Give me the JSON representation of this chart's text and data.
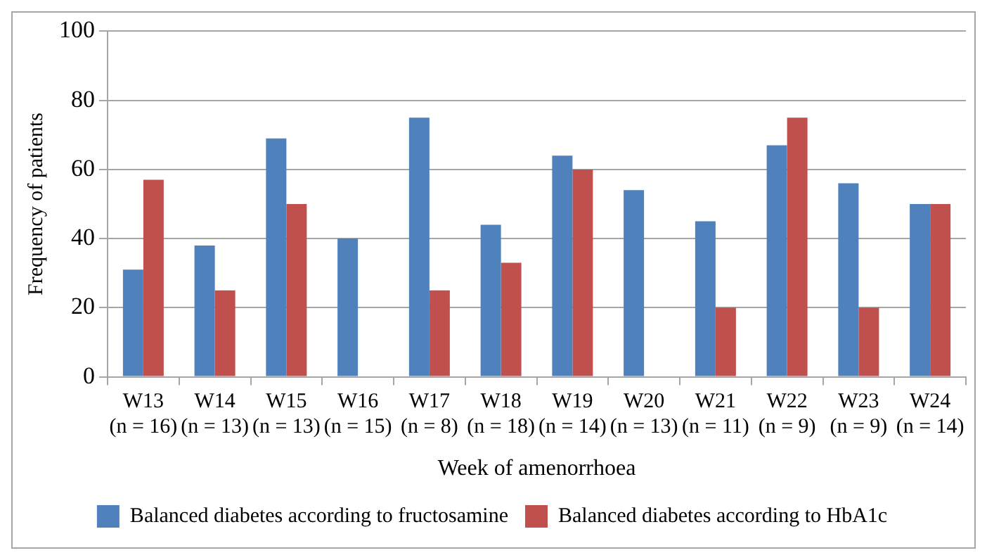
{
  "chart_data": {
    "type": "bar",
    "xlabel": "Week of amenorrhoea",
    "ylabel": "Frequency of patients",
    "categories": [
      "W13\n(n = 16)",
      "W14\n(n = 13)",
      "W15\n(n = 13)",
      "W16\n(n = 15)",
      "W17\n(n = 8)",
      "W18\n(n = 18)",
      "W19\n(n = 14)",
      "W20\n(n = 13)",
      "W21\n(n = 11)",
      "W22\n(n = 9)",
      "W23\n(n = 9)",
      "W24\n(n = 14)"
    ],
    "series": [
      {
        "name": "Balanced diabetes according to fructosamine",
        "color": "#4f81bd",
        "values": [
          31,
          38,
          69,
          40,
          75,
          44,
          64,
          54,
          45,
          67,
          56,
          50
        ]
      },
      {
        "name": "Balanced diabetes according to HbA1c",
        "color": "#c0504d",
        "values": [
          57,
          25,
          50,
          0,
          25,
          33,
          60,
          0,
          20,
          75,
          20,
          50
        ]
      }
    ],
    "ylim": [
      0,
      100
    ],
    "yticks": [
      0,
      20,
      40,
      60,
      80,
      100
    ],
    "grid": "y",
    "legend": "bottom"
  }
}
